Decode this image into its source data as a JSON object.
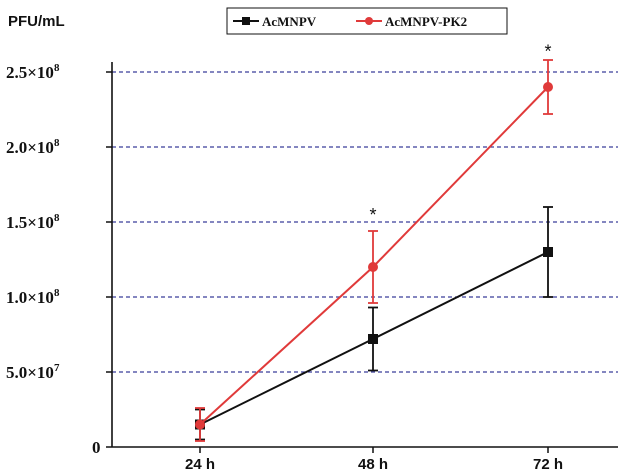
{
  "chart_data": {
    "type": "line",
    "ylabel": "PFU/mL",
    "xlabel": "",
    "categories": [
      "24 h",
      "48 h",
      "72 h"
    ],
    "ylim": [
      0,
      250000000
    ],
    "yticks": [
      {
        "value": 0,
        "label": "0"
      },
      {
        "value": 50000000,
        "label": "5.0×10",
        "exp": "7"
      },
      {
        "value": 100000000,
        "label": "1.0×10",
        "exp": "8"
      },
      {
        "value": 150000000,
        "label": "1.5×10",
        "exp": "8"
      },
      {
        "value": 200000000,
        "label": "2.0×10",
        "exp": "8"
      },
      {
        "value": 250000000,
        "label": "2.5×10",
        "exp": "8"
      }
    ],
    "grid": "horizontal dashed",
    "legend_position": "top",
    "series": [
      {
        "name": "AcMNPV",
        "color": "#111111",
        "marker": "square",
        "values": [
          15000000,
          72000000,
          130000000
        ],
        "errors": [
          10000000,
          21000000,
          30000000
        ]
      },
      {
        "name": "AcMNPV-PK2",
        "color": "#e03a3a",
        "marker": "circle",
        "values": [
          15000000,
          120000000,
          240000000
        ],
        "errors": [
          11000000,
          24000000,
          18000000
        ]
      }
    ],
    "annotations": [
      {
        "text": "*",
        "category": "48 h",
        "value": 156000000
      },
      {
        "text": "*",
        "category": "72 h",
        "value": 265000000
      }
    ],
    "grid_color": "#3b3f9a"
  }
}
